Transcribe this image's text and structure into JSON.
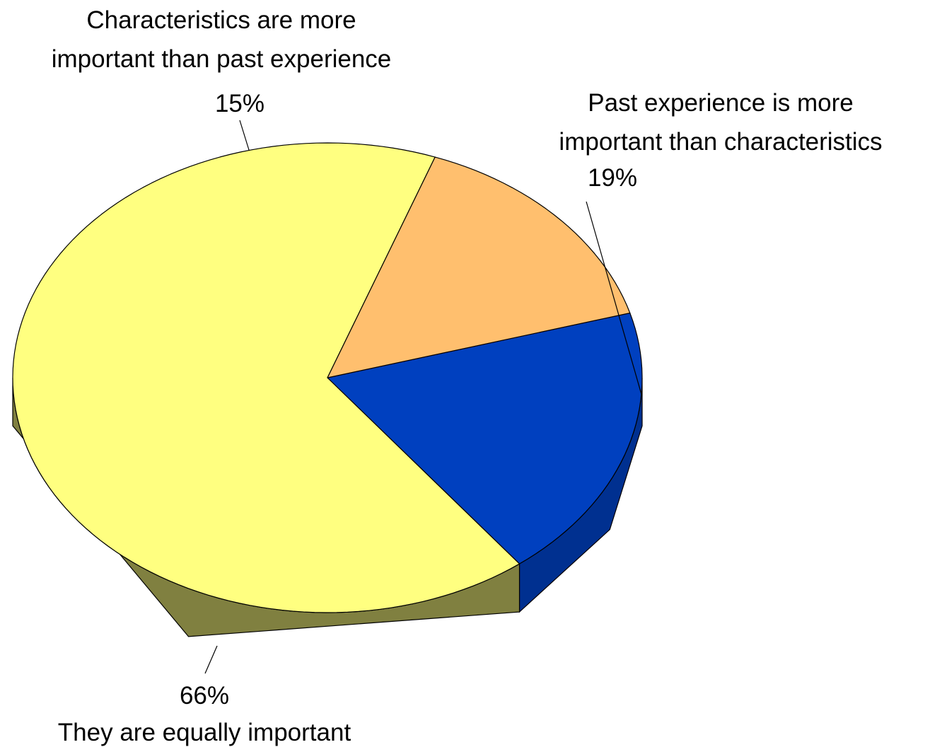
{
  "chart_data": {
    "type": "pie",
    "style": "3d",
    "slices": [
      {
        "label_lines": [
          "Past experience is more",
          "important than characteristics"
        ],
        "value": 19,
        "value_label": "19%",
        "color": "#0040BF"
      },
      {
        "label_lines": [
          "They are equally important"
        ],
        "value": 66,
        "value_label": "66%",
        "color": "#FFFF80"
      },
      {
        "label_lines": [
          "Characteristics are more",
          "important than past experience"
        ],
        "value": 15,
        "value_label": "15%",
        "color": "#FFBF6E"
      }
    ],
    "colors": {
      "side_yellow": "#808040",
      "side_orange": "#BF8A4E",
      "side_blue": "#003090",
      "outline": "#000000"
    }
  }
}
